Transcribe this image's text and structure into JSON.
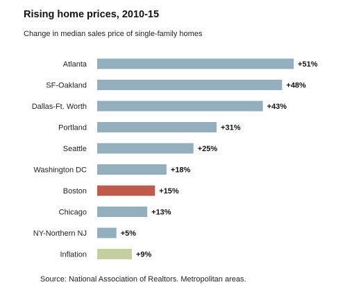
{
  "chart_data": {
    "type": "bar",
    "orientation": "horizontal",
    "title": "Rising home prices, 2010-15",
    "subtitle": "Change in median sales price of single-family homes",
    "source": "Source: National Association of Realtors. Metropolitan areas.",
    "xlabel": "",
    "ylabel": "",
    "xlim": [
      0,
      51
    ],
    "grid": false,
    "legend": "none",
    "categories": [
      "Atlanta",
      "SF-Oakland",
      "Dallas-Ft. Worth",
      "Portland",
      "Seattle",
      "Washington DC",
      "Boston",
      "Chicago",
      "NY-Northern NJ",
      "Inflation"
    ],
    "values": [
      51,
      48,
      43,
      31,
      25,
      18,
      15,
      13,
      5,
      9
    ],
    "value_labels": [
      "+51%",
      "+48%",
      "+43%",
      "+31%",
      "+25%",
      "+18%",
      "+15%",
      "+13%",
      "+5%",
      "+9%"
    ],
    "bar_colors": [
      "#93afbd",
      "#93afbd",
      "#93afbd",
      "#93afbd",
      "#93afbd",
      "#93afbd",
      "#c05a4c",
      "#93afbd",
      "#93afbd",
      "#c3cf9f"
    ]
  }
}
